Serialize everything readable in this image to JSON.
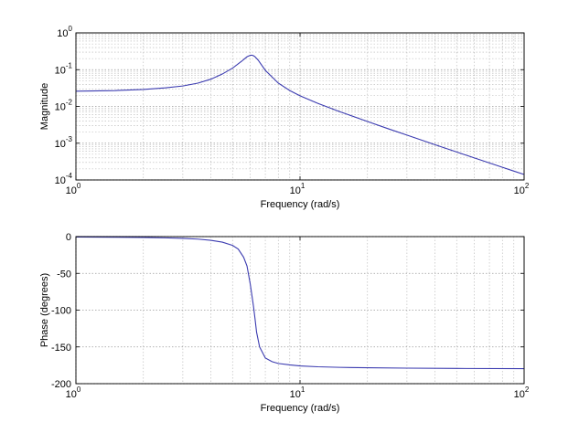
{
  "chart_data": [
    {
      "type": "line",
      "xscale": "log",
      "yscale": "log",
      "xlabel": "Frequency (rad/s)",
      "ylabel": "Magnitude",
      "xlim": [
        1,
        100
      ],
      "ylim": [
        0.0001,
        1
      ],
      "grid": true,
      "xticks": [
        {
          "base": "10",
          "exp": "0"
        },
        {
          "base": "10",
          "exp": "1"
        },
        {
          "base": "10",
          "exp": "2"
        }
      ],
      "yticks": [
        {
          "base": "10",
          "exp": "-4"
        },
        {
          "base": "10",
          "exp": "-3"
        },
        {
          "base": "10",
          "exp": "-2"
        },
        {
          "base": "10",
          "exp": "-1"
        },
        {
          "base": "10",
          "exp": "0"
        }
      ],
      "series": [
        {
          "color": "#3b3bb0",
          "x": [
            1,
            1.5,
            2,
            2.5,
            3,
            3.5,
            4,
            4.5,
            5,
            5.5,
            5.8,
            6.0,
            6.1,
            6.2,
            6.3,
            6.5,
            7,
            8,
            9,
            10,
            12,
            15,
            20,
            25,
            30,
            40,
            50,
            60,
            70,
            80,
            90,
            100
          ],
          "y": [
            0.026,
            0.027,
            0.029,
            0.032,
            0.036,
            0.043,
            0.055,
            0.076,
            0.11,
            0.171,
            0.224,
            0.246,
            0.247,
            0.239,
            0.224,
            0.183,
            0.096,
            0.043,
            0.027,
            0.0195,
            0.0121,
            0.00726,
            0.00389,
            0.00242,
            0.00166,
            0.000911,
            0.000576,
            0.000397,
            0.00029,
            0.000221,
            0.000174,
            0.000141
          ]
        }
      ]
    },
    {
      "type": "line",
      "xscale": "log",
      "yscale": "linear",
      "xlabel": "Frequency (rad/s)",
      "ylabel": "Phase (degrees)",
      "xlim": [
        1,
        100
      ],
      "ylim": [
        -200,
        0
      ],
      "grid": true,
      "xticks": [
        {
          "base": "10",
          "exp": "0"
        },
        {
          "base": "10",
          "exp": "1"
        },
        {
          "base": "10",
          "exp": "2"
        }
      ],
      "yticks": [
        {
          "value": 0,
          "label": "0"
        },
        {
          "value": -50,
          "label": "-50"
        },
        {
          "value": -100,
          "label": "-100"
        },
        {
          "value": -150,
          "label": "-150"
        },
        {
          "value": -200,
          "label": "-200"
        }
      ],
      "series": [
        {
          "color": "#3b3bb0",
          "x": [
            1,
            1.5,
            2,
            2.5,
            3,
            3.5,
            4,
            4.5,
            5,
            5.3,
            5.6,
            5.8,
            6.0,
            6.1,
            6.2,
            6.3,
            6.4,
            6.6,
            7,
            7.5,
            8,
            9,
            10,
            12,
            15,
            20,
            30,
            50,
            100
          ],
          "y": [
            -0.5,
            -0.8,
            -1.2,
            -1.7,
            -2.4,
            -3.4,
            -5,
            -7.5,
            -12,
            -17,
            -28,
            -40,
            -65,
            -80,
            -95,
            -112,
            -130,
            -150,
            -165,
            -170,
            -172.5,
            -174.5,
            -175.8,
            -177,
            -177.8,
            -178.4,
            -178.9,
            -179.3,
            -179.6
          ]
        }
      ]
    }
  ]
}
